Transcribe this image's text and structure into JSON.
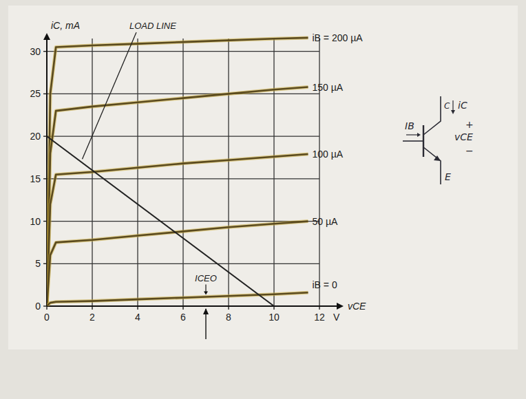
{
  "chart_data": {
    "type": "line",
    "ylabel": "iC, mA",
    "xlabel": "vCE",
    "x_units": "V",
    "xlim": [
      0,
      13
    ],
    "ylim": [
      0,
      32
    ],
    "xticks": [
      0,
      2,
      4,
      6,
      8,
      10,
      12
    ],
    "yticks": [
      0,
      5,
      10,
      15,
      20,
      25,
      30
    ],
    "grid": true,
    "series": [
      {
        "name": "iB = 200 µA",
        "color": "#5a4a1e",
        "x": [
          0,
          0.15,
          0.4,
          2,
          4,
          6,
          8,
          10,
          11.5
        ],
        "values": [
          0,
          25,
          30.5,
          30.7,
          30.9,
          31.1,
          31.3,
          31.5,
          31.6
        ]
      },
      {
        "name": "150 µA",
        "color": "#5a4a1e",
        "x": [
          0,
          0.15,
          0.4,
          2,
          4,
          6,
          8,
          10,
          11.5
        ],
        "values": [
          0,
          18,
          23,
          23.5,
          24,
          24.5,
          25,
          25.5,
          25.8
        ]
      },
      {
        "name": "100 µA",
        "color": "#5a4a1e",
        "x": [
          0,
          0.15,
          0.4,
          2,
          4,
          6,
          8,
          10,
          11.5
        ],
        "values": [
          0,
          12,
          15.5,
          15.8,
          16.3,
          16.8,
          17.2,
          17.6,
          17.9
        ]
      },
      {
        "name": "50 µA",
        "color": "#5a4a1e",
        "x": [
          0,
          0.15,
          0.4,
          2,
          4,
          6,
          8,
          10,
          11.5
        ],
        "values": [
          0,
          6,
          7.5,
          7.8,
          8.3,
          8.8,
          9.3,
          9.7,
          10
        ]
      },
      {
        "name": "iB = 0",
        "color": "#5a4a1e",
        "x": [
          0,
          0.15,
          0.4,
          2,
          4,
          6,
          8,
          10,
          11.5
        ],
        "values": [
          0,
          0.4,
          0.5,
          0.6,
          0.8,
          1,
          1.2,
          1.4,
          1.6
        ]
      },
      {
        "name": "LOAD LINE",
        "color": "#222222",
        "x": [
          0,
          10
        ],
        "values": [
          20,
          0
        ]
      }
    ],
    "annotations": [
      {
        "text": "ICEO",
        "x": 7
      }
    ],
    "circuit_labels": {
      "base_current": "IB",
      "collector_current": "iC",
      "collector": "C",
      "emitter": "E",
      "voltage": "vCE",
      "plus": "+",
      "minus": "−"
    }
  }
}
